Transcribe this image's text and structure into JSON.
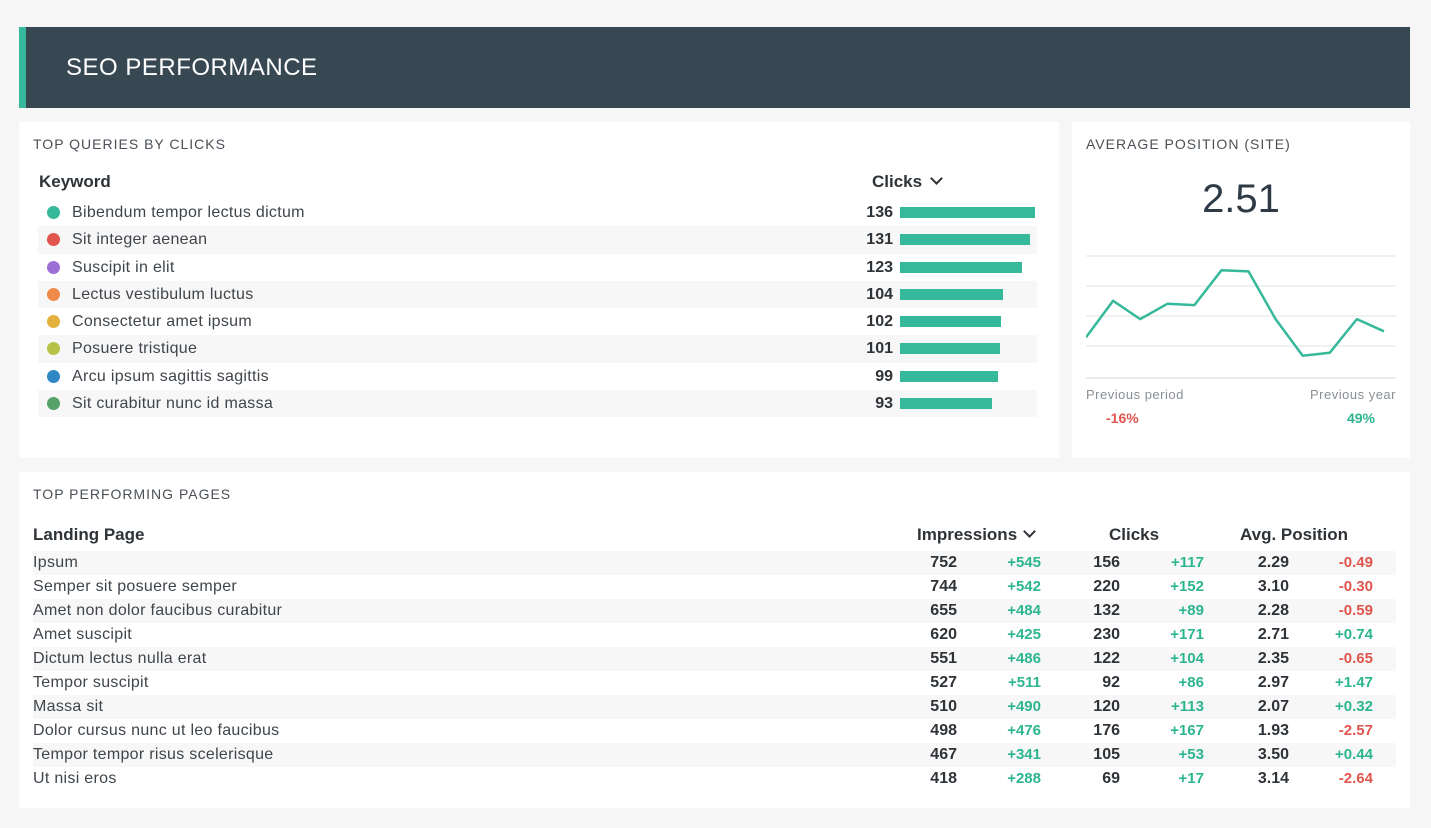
{
  "header": {
    "title": "SEO PERFORMANCE"
  },
  "queries": {
    "title": "TOP QUERIES BY CLICKS",
    "col_keyword": "Keyword",
    "col_clicks": "Clicks",
    "max": 136,
    "rows": [
      {
        "label": "Bibendum tempor lectus dictum",
        "value": "136",
        "n": 136,
        "color": "#36b89a"
      },
      {
        "label": "Sit integer aenean",
        "value": "131",
        "n": 131,
        "color": "#e0554d"
      },
      {
        "label": "Suscipit in elit",
        "value": "123",
        "n": 123,
        "color": "#9b6fd6"
      },
      {
        "label": "Lectus vestibulum luctus",
        "value": "104",
        "n": 104,
        "color": "#ef8a4a"
      },
      {
        "label": "Consectetur amet ipsum",
        "value": "102",
        "n": 102,
        "color": "#e3b03d"
      },
      {
        "label": "Posuere tristique",
        "value": "101",
        "n": 101,
        "color": "#b6c346"
      },
      {
        "label": "Arcu ipsum sagittis sagittis",
        "value": "99",
        "n": 99,
        "color": "#2f86c4"
      },
      {
        "label": "Sit curabitur nunc id massa",
        "value": "93",
        "n": 93,
        "color": "#56a06a"
      }
    ]
  },
  "avg_position": {
    "title": "AVERAGE POSITION (SITE)",
    "value": "2.51",
    "previous_period_label": "Previous period",
    "previous_period_value": "-16%",
    "previous_year_label": "Previous year",
    "previous_year_value": "49%",
    "line_color": "#36b89a",
    "sparkline": [
      3.3,
      2.7,
      3.0,
      2.75,
      2.77,
      2.2,
      2.22,
      3.0,
      3.6,
      3.55,
      3.0,
      3.2
    ]
  },
  "pages": {
    "title": "TOP PERFORMING PAGES",
    "col_page": "Landing Page",
    "col_impressions": "Impressions",
    "col_clicks": "Clicks",
    "col_position": "Avg. Position",
    "rows": [
      {
        "page": "Ipsum",
        "impr": "752",
        "impr_d": "+545",
        "clicks": "156",
        "clicks_d": "+117",
        "pos": "2.29",
        "pos_d": "-0.49"
      },
      {
        "page": "Semper sit posuere semper",
        "impr": "744",
        "impr_d": "+542",
        "clicks": "220",
        "clicks_d": "+152",
        "pos": "3.10",
        "pos_d": "-0.30"
      },
      {
        "page": "Amet non dolor faucibus curabitur",
        "impr": "655",
        "impr_d": "+484",
        "clicks": "132",
        "clicks_d": "+89",
        "pos": "2.28",
        "pos_d": "-0.59"
      },
      {
        "page": "Amet suscipit",
        "impr": "620",
        "impr_d": "+425",
        "clicks": "230",
        "clicks_d": "+171",
        "pos": "2.71",
        "pos_d": "+0.74"
      },
      {
        "page": "Dictum lectus nulla erat",
        "impr": "551",
        "impr_d": "+486",
        "clicks": "122",
        "clicks_d": "+104",
        "pos": "2.35",
        "pos_d": "-0.65"
      },
      {
        "page": "Tempor suscipit",
        "impr": "527",
        "impr_d": "+511",
        "clicks": "92",
        "clicks_d": "+86",
        "pos": "2.97",
        "pos_d": "+1.47"
      },
      {
        "page": "Massa sit",
        "impr": "510",
        "impr_d": "+490",
        "clicks": "120",
        "clicks_d": "+113",
        "pos": "2.07",
        "pos_d": "+0.32"
      },
      {
        "page": "Dolor cursus nunc ut leo faucibus",
        "impr": "498",
        "impr_d": "+476",
        "clicks": "176",
        "clicks_d": "+167",
        "pos": "1.93",
        "pos_d": "-2.57"
      },
      {
        "page": "Tempor tempor risus scelerisque",
        "impr": "467",
        "impr_d": "+341",
        "clicks": "105",
        "clicks_d": "+53",
        "pos": "3.50",
        "pos_d": "+0.44"
      },
      {
        "page": "Ut nisi eros",
        "impr": "418",
        "impr_d": "+288",
        "clicks": "69",
        "clicks_d": "+17",
        "pos": "3.14",
        "pos_d": "-2.64"
      }
    ]
  }
}
